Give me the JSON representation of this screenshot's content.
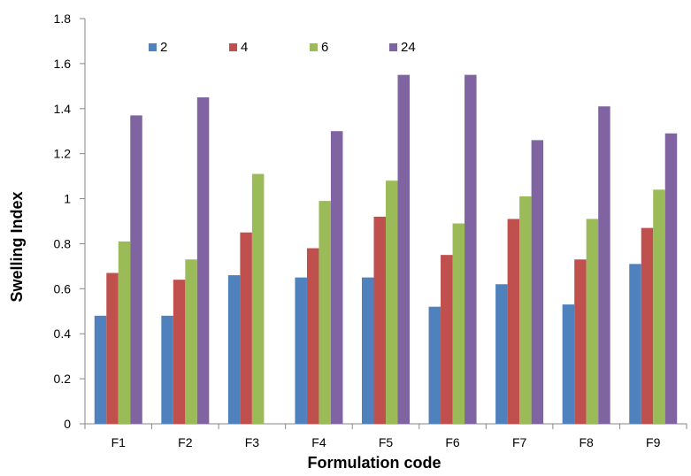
{
  "chart_data": {
    "type": "bar",
    "title": "",
    "xlabel": "Formulation code",
    "ylabel": "Swelling Index",
    "ylim": [
      0,
      1.8
    ],
    "ytick_step": 0.2,
    "yticks": [
      "0",
      "0.2",
      "0.4",
      "0.6",
      "0.8",
      "1",
      "1.2",
      "1.4",
      "1.6",
      "1.8"
    ],
    "grid": false,
    "legend_position": "top-left",
    "categories": [
      "F1",
      "F2",
      "F3",
      "F4",
      "F5",
      "F6",
      "F7",
      "F8",
      "F9"
    ],
    "series": [
      {
        "name": "2",
        "color": "#4F81BD",
        "values": [
          0.48,
          0.48,
          0.66,
          0.65,
          0.65,
          0.52,
          0.62,
          0.53,
          0.71
        ]
      },
      {
        "name": "4",
        "color": "#C0504D",
        "values": [
          0.67,
          0.64,
          0.85,
          0.78,
          0.92,
          0.75,
          0.91,
          0.73,
          0.87
        ]
      },
      {
        "name": "6",
        "color": "#9BBB59",
        "values": [
          0.81,
          0.73,
          1.11,
          0.99,
          1.08,
          0.89,
          1.01,
          0.91,
          1.04
        ]
      },
      {
        "name": "24",
        "color": "#8064A2",
        "values": [
          1.37,
          1.45,
          null,
          1.3,
          1.55,
          1.55,
          1.26,
          1.41,
          1.29
        ]
      }
    ]
  }
}
